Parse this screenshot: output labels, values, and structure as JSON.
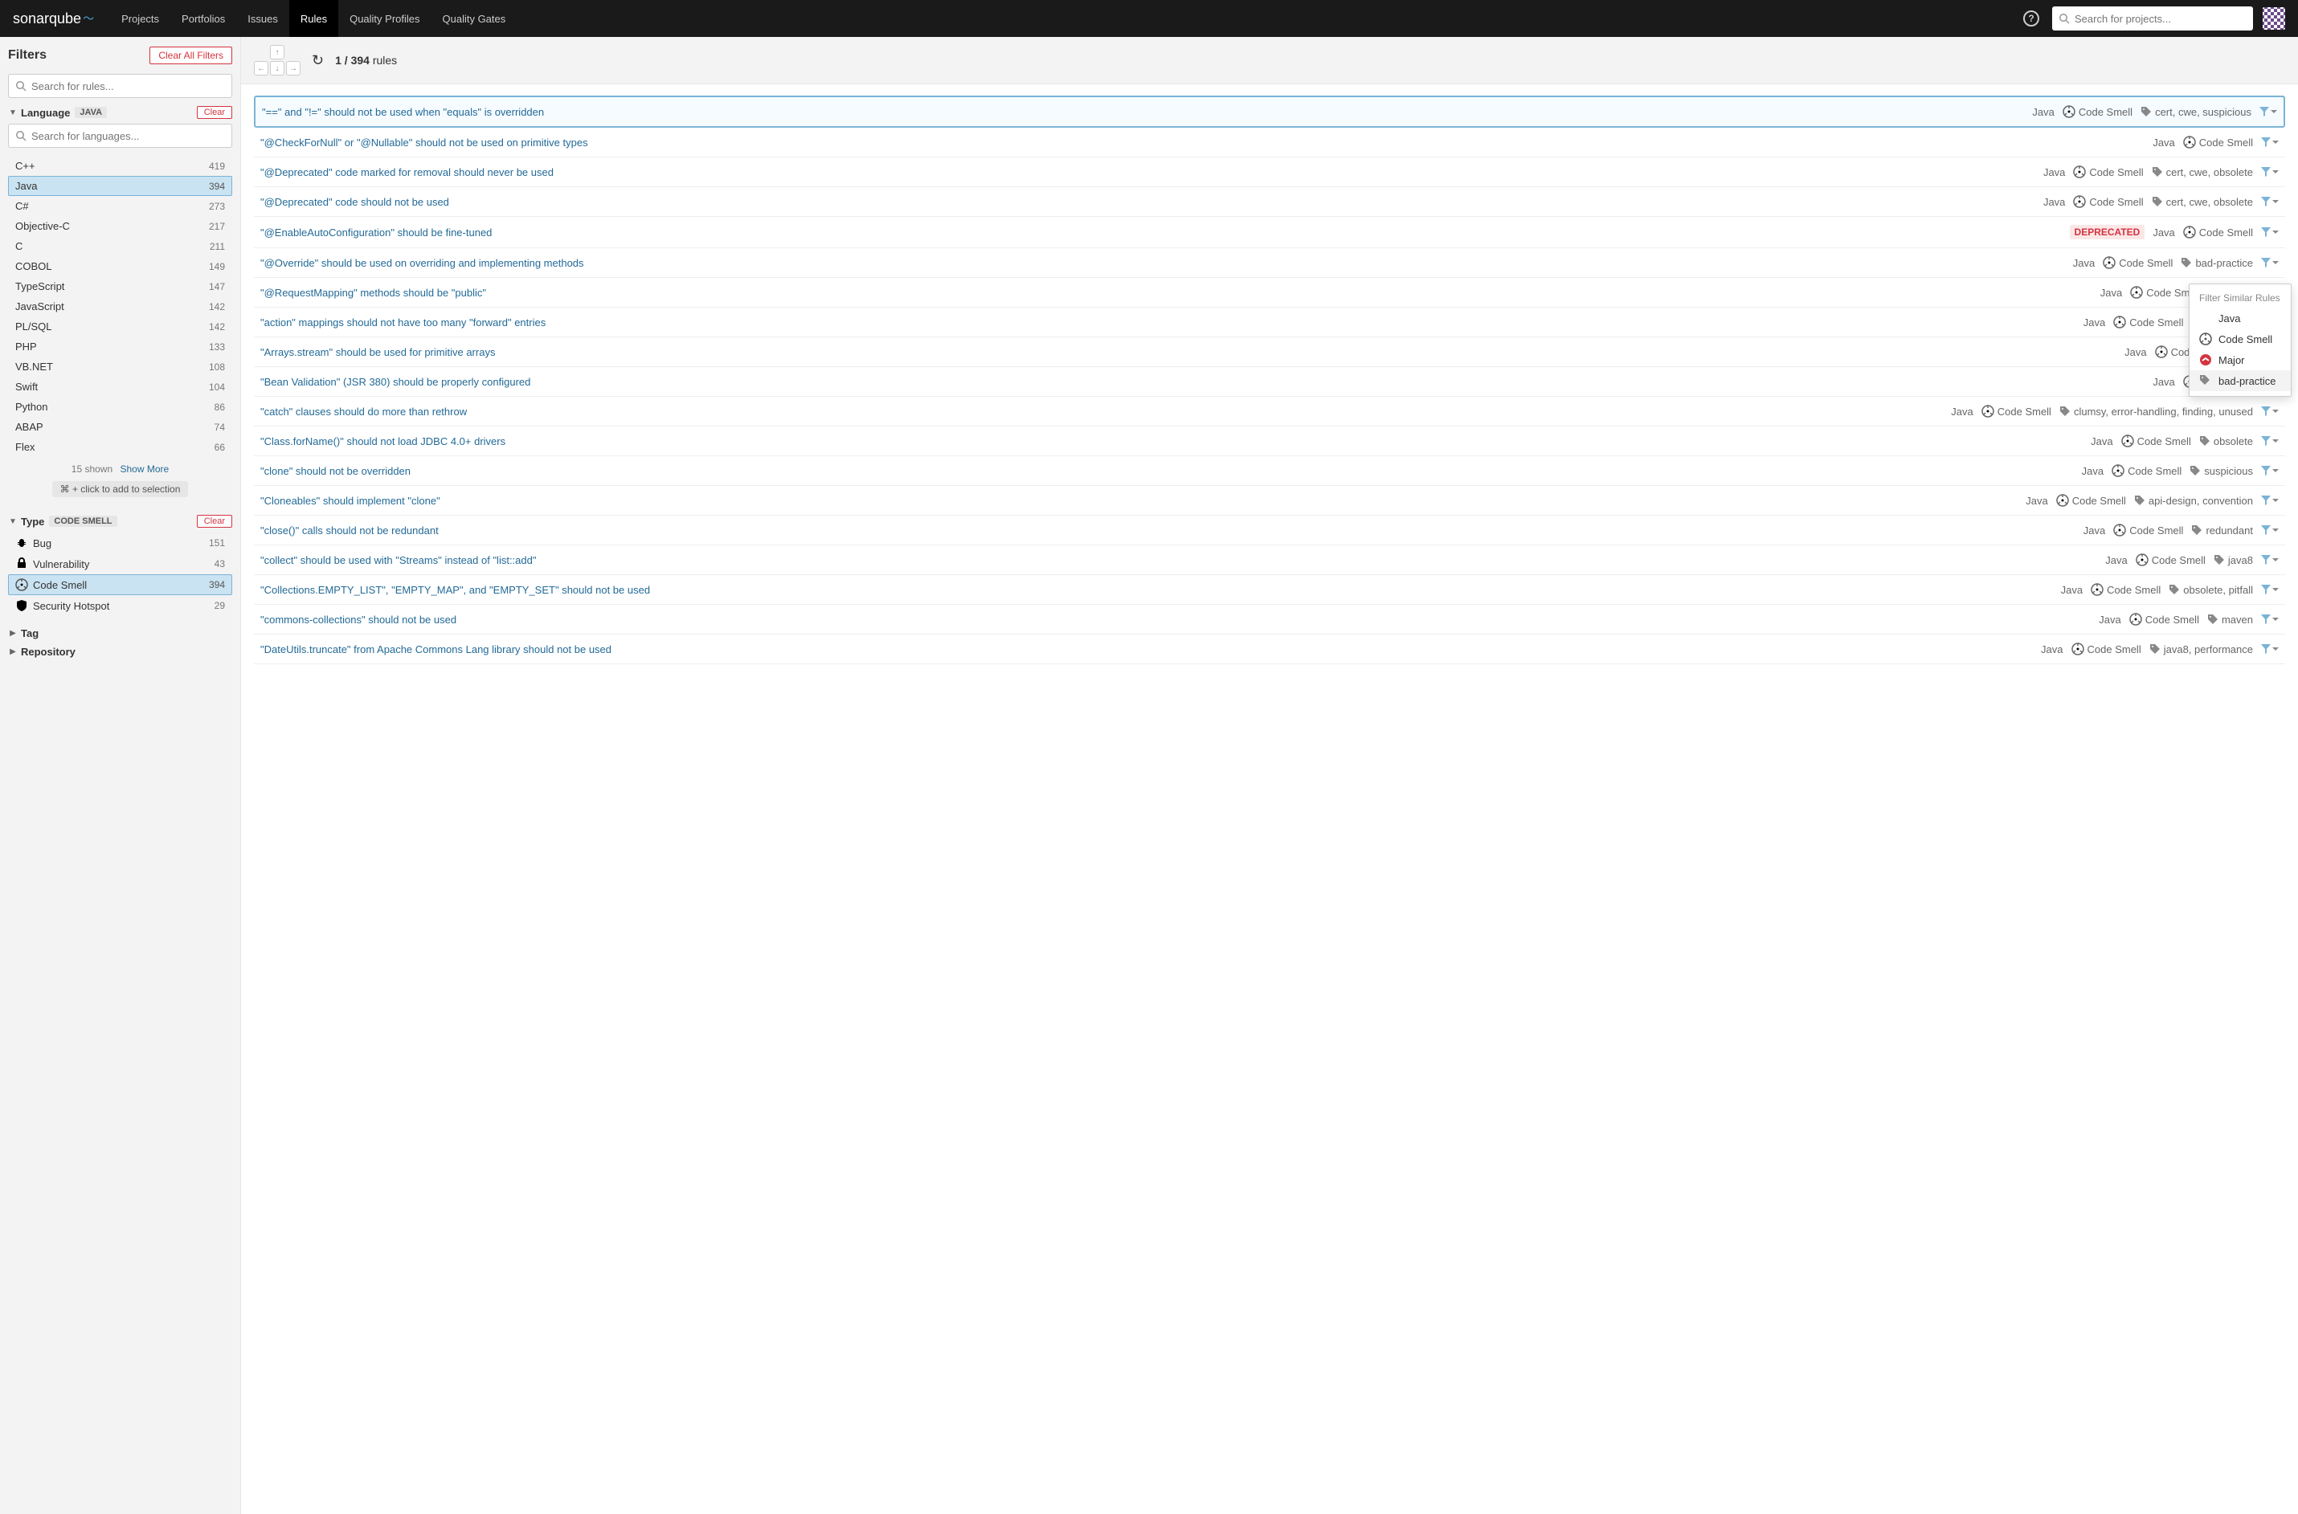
{
  "topnav": {
    "logo": "sonarqube",
    "items": [
      "Projects",
      "Portfolios",
      "Issues",
      "Rules",
      "Quality Profiles",
      "Quality Gates"
    ],
    "active_index": 3,
    "search_placeholder": "Search for projects..."
  },
  "sidebar": {
    "filters_title": "Filters",
    "clear_all": "Clear All Filters",
    "rules_search_placeholder": "Search for rules...",
    "facets": {
      "language": {
        "name": "Language",
        "value": "JAVA",
        "clear": "Clear",
        "search_placeholder": "Search for languages...",
        "items": [
          {
            "label": "C++",
            "count": 419,
            "selected": false
          },
          {
            "label": "Java",
            "count": 394,
            "selected": true
          },
          {
            "label": "C#",
            "count": 273,
            "selected": false
          },
          {
            "label": "Objective-C",
            "count": 217,
            "selected": false
          },
          {
            "label": "C",
            "count": 211,
            "selected": false
          },
          {
            "label": "COBOL",
            "count": 149,
            "selected": false
          },
          {
            "label": "TypeScript",
            "count": 147,
            "selected": false
          },
          {
            "label": "JavaScript",
            "count": 142,
            "selected": false
          },
          {
            "label": "PL/SQL",
            "count": 142,
            "selected": false
          },
          {
            "label": "PHP",
            "count": 133,
            "selected": false
          },
          {
            "label": "VB.NET",
            "count": 108,
            "selected": false
          },
          {
            "label": "Swift",
            "count": 104,
            "selected": false
          },
          {
            "label": "Python",
            "count": 86,
            "selected": false
          },
          {
            "label": "ABAP",
            "count": 74,
            "selected": false
          },
          {
            "label": "Flex",
            "count": 66,
            "selected": false
          }
        ],
        "shown_text": "15 shown",
        "show_more": "Show More",
        "hint": "⌘ + click to add to selection"
      },
      "type": {
        "name": "Type",
        "value": "CODE SMELL",
        "clear": "Clear",
        "items": [
          {
            "icon": "bug",
            "label": "Bug",
            "count": 151,
            "selected": false
          },
          {
            "icon": "lock",
            "label": "Vulnerability",
            "count": 43,
            "selected": false
          },
          {
            "icon": "codesmell",
            "label": "Code Smell",
            "count": 394,
            "selected": true
          },
          {
            "icon": "shield",
            "label": "Security Hotspot",
            "count": 29,
            "selected": false
          }
        ]
      },
      "tag": {
        "name": "Tag"
      },
      "repository": {
        "name": "Repository"
      }
    }
  },
  "main_header": {
    "count_current": "1",
    "count_total": "394",
    "count_suffix": "rules"
  },
  "rules": [
    {
      "title": "\"==\" and \"!=\" should not be used when \"equals\" is overridden",
      "lang": "Java",
      "type": "Code Smell",
      "tags": "cert, cwe, suspicious",
      "selected": true
    },
    {
      "title": "\"@CheckForNull\" or \"@Nullable\" should not be used on primitive types",
      "lang": "Java",
      "type": "Code Smell",
      "tags": ""
    },
    {
      "title": "\"@Deprecated\" code marked for removal should never be used",
      "lang": "Java",
      "type": "Code Smell",
      "tags": "cert, cwe, obsolete"
    },
    {
      "title": "\"@Deprecated\" code should not be used",
      "lang": "Java",
      "type": "Code Smell",
      "tags": "cert, cwe, obsolete"
    },
    {
      "title": "\"@EnableAutoConfiguration\" should be fine-tuned",
      "lang": "Java",
      "type": "Code Smell",
      "tags": "",
      "deprecated": true
    },
    {
      "title": "\"@Override\" should be used on overriding and implementing methods",
      "lang": "Java",
      "type": "Code Smell",
      "tags": "bad-practice"
    },
    {
      "title": "\"@RequestMapping\" methods should be \"public\"",
      "lang": "Java",
      "type": "Code Smell",
      "tags": "owasp"
    },
    {
      "title": "\"action\" mappings should not have too many \"forward\" entries",
      "lang": "Java",
      "type": "Code Smell",
      "tags": "brain-over"
    },
    {
      "title": "\"Arrays.stream\" should be used for primitive arrays",
      "lang": "Java",
      "type": "Code Smell",
      "tags": "p"
    },
    {
      "title": "\"Bean Validation\" (JSR 380) should be properly configured",
      "lang": "Java",
      "type": "Code Smell",
      "tags": ""
    },
    {
      "title": "\"catch\" clauses should do more than rethrow",
      "lang": "Java",
      "type": "Code Smell",
      "tags": "clumsy, error-handling, finding, unused"
    },
    {
      "title": "\"Class.forName()\" should not load JDBC 4.0+ drivers",
      "lang": "Java",
      "type": "Code Smell",
      "tags": "obsolete"
    },
    {
      "title": "\"clone\" should not be overridden",
      "lang": "Java",
      "type": "Code Smell",
      "tags": "suspicious"
    },
    {
      "title": "\"Cloneables\" should implement \"clone\"",
      "lang": "Java",
      "type": "Code Smell",
      "tags": "api-design, convention"
    },
    {
      "title": "\"close()\" calls should not be redundant",
      "lang": "Java",
      "type": "Code Smell",
      "tags": "redundant"
    },
    {
      "title": "\"collect\" should be used with \"Streams\" instead of \"list::add\"",
      "lang": "Java",
      "type": "Code Smell",
      "tags": "java8"
    },
    {
      "title": "\"Collections.EMPTY_LIST\", \"EMPTY_MAP\", and \"EMPTY_SET\" should not be used",
      "lang": "Java",
      "type": "Code Smell",
      "tags": "obsolete, pitfall"
    },
    {
      "title": "\"commons-collections\" should not be used",
      "lang": "Java",
      "type": "Code Smell",
      "tags": "maven"
    },
    {
      "title": "\"DateUtils.truncate\" from Apache Commons Lang library should not be used",
      "lang": "Java",
      "type": "Code Smell",
      "tags": "java8, performance"
    }
  ],
  "popup": {
    "header": "Filter Similar Rules",
    "items": [
      {
        "icon": "",
        "label": "Java"
      },
      {
        "icon": "codesmell",
        "label": "Code Smell"
      },
      {
        "icon": "major",
        "label": "Major"
      },
      {
        "icon": "tag",
        "label": "bad-practice",
        "hovered": true
      }
    ]
  },
  "colors": {
    "link": "#236a97",
    "danger": "#d4333f",
    "selected_bg": "#cae3f2",
    "selected_border": "#7bb3d6"
  }
}
